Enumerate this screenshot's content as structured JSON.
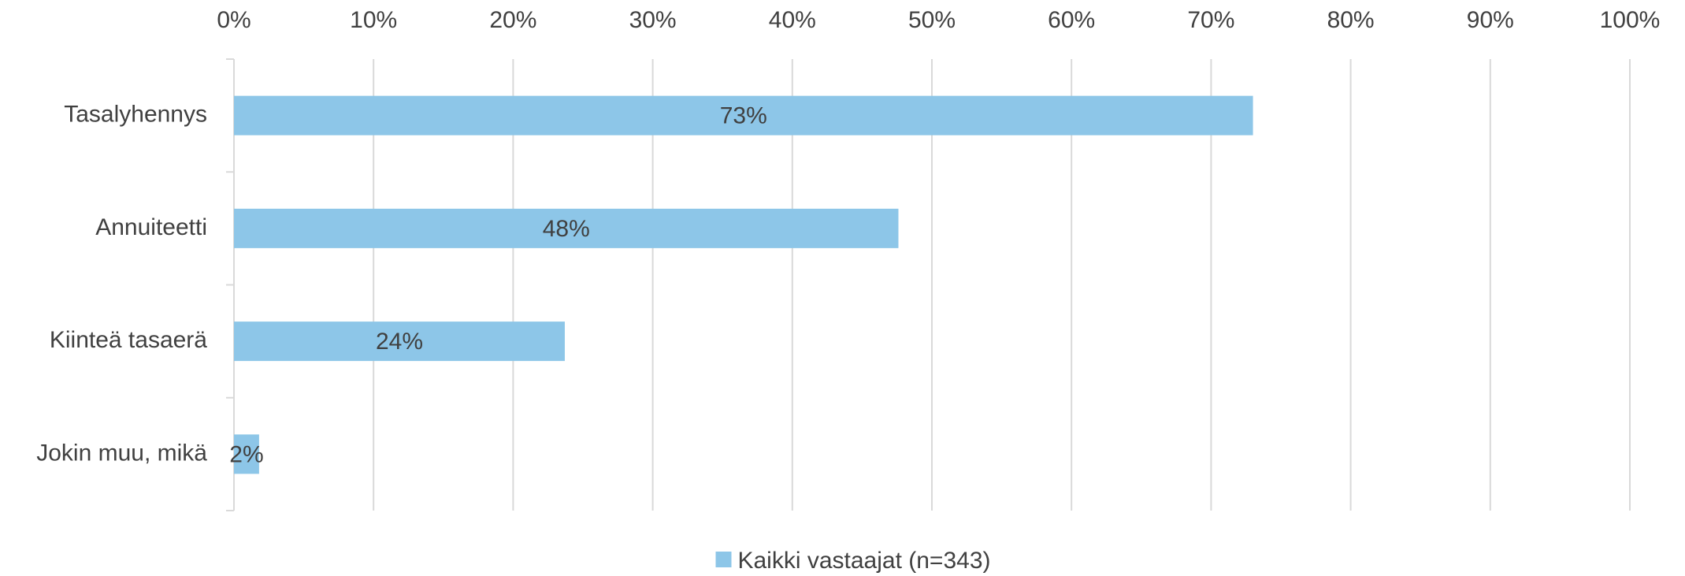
{
  "chart_data": {
    "type": "bar",
    "orientation": "horizontal",
    "categories": [
      "Tasalyhennys",
      "Annuiteetti",
      "Kiinteä tasaerä",
      "Jokin muu, mikä"
    ],
    "series": [
      {
        "name": "Kaikki vastaajat (n=343)",
        "color": "#8dc6e8",
        "values": [
          73,
          47.6,
          23.7,
          1.8
        ],
        "value_labels": [
          "73%",
          "48%",
          "24%",
          "2%"
        ]
      }
    ],
    "xlim": [
      0,
      100
    ],
    "xticks": [
      {
        "value": 0,
        "label": "0%"
      },
      {
        "value": 10,
        "label": "10%"
      },
      {
        "value": 20,
        "label": "20%"
      },
      {
        "value": 30,
        "label": "30%"
      },
      {
        "value": 40,
        "label": "40%"
      },
      {
        "value": 50,
        "label": "50%"
      },
      {
        "value": 60,
        "label": "60%"
      },
      {
        "value": 70,
        "label": "70%"
      },
      {
        "value": 80,
        "label": "80%"
      },
      {
        "value": 90,
        "label": "90%"
      },
      {
        "value": 100,
        "label": "100%"
      }
    ],
    "grid": true,
    "legend": "bottom"
  }
}
